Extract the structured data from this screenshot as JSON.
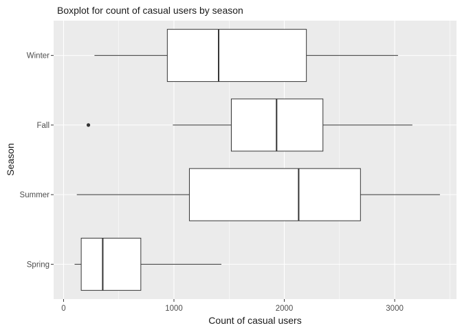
{
  "chart_data": {
    "type": "boxplot",
    "orientation": "horizontal",
    "title": "Boxplot for count of casual users by season",
    "xlabel": "Count of casual users",
    "ylabel": "Season",
    "xlim": [
      -90,
      3560
    ],
    "xticks": [
      0,
      1000,
      2000,
      3000
    ],
    "categories": [
      "Spring",
      "Summer",
      "Fall",
      "Winter"
    ],
    "boxes": [
      {
        "category": "Spring",
        "whisker_low": 100,
        "q1": 160,
        "median": 355,
        "q3": 700,
        "whisker_high": 1430,
        "outliers": []
      },
      {
        "category": "Summer",
        "whisker_low": 120,
        "q1": 1140,
        "median": 2130,
        "q3": 2690,
        "whisker_high": 3410,
        "outliers": []
      },
      {
        "category": "Fall",
        "whisker_low": 990,
        "q1": 1520,
        "median": 1930,
        "q3": 2350,
        "whisker_high": 3160,
        "outliers": [
          225
        ]
      },
      {
        "category": "Winter",
        "whisker_low": 280,
        "q1": 940,
        "median": 1405,
        "q3": 2200,
        "whisker_high": 3030,
        "outliers": []
      }
    ],
    "colors": {
      "panel_background": "#ebebeb",
      "grid_major": "#ffffff",
      "box_fill": "#ffffff",
      "box_stroke": "#333333",
      "outlier": "#333333"
    },
    "grid": true,
    "legend": "none"
  }
}
